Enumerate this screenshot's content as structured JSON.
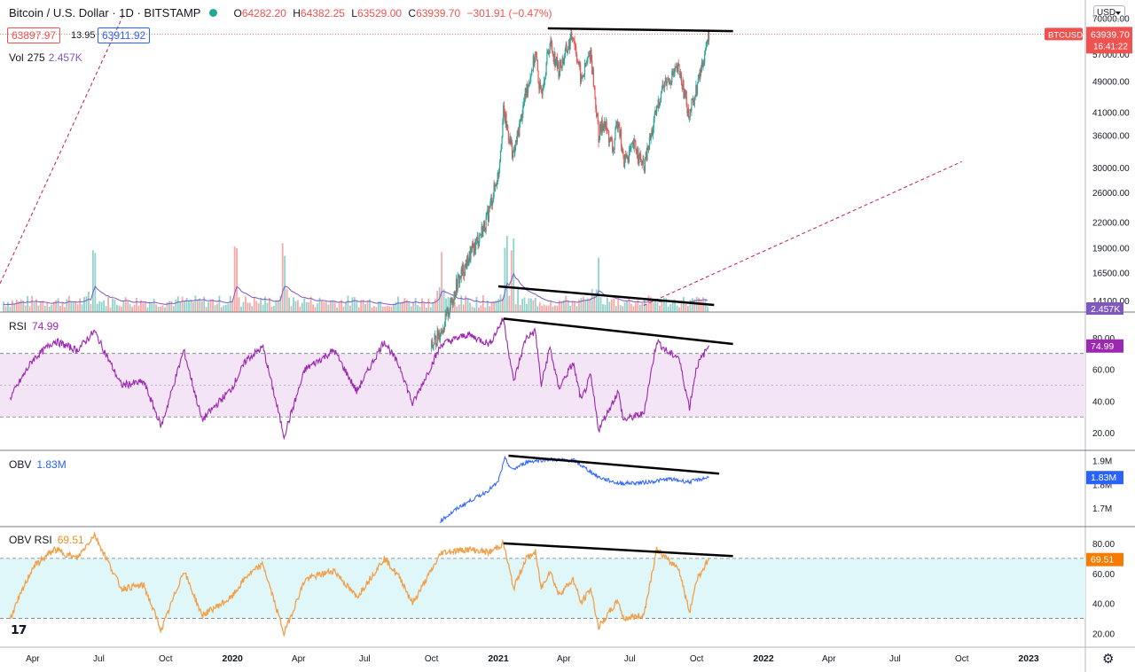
{
  "header": {
    "title": "Bitcoin / U.S. Dollar · 1D · BITSTAMP",
    "open_label": "O",
    "open": "64282.20",
    "high_label": "H",
    "high": "64382.25",
    "low_label": "L",
    "low": "63529.00",
    "close_label": "C",
    "close": "63939.70",
    "change": "−301.91 (−0.47%)",
    "bid": "63897.97",
    "spread": "13.95",
    "ask": "63911.92",
    "currency": "USD"
  },
  "colors": {
    "up": "#26a69a",
    "down": "#ef5350",
    "rsi": "#9c27b0",
    "rsi_band": "#f3e5f5",
    "obv": "#2962ff",
    "obv_rsi": "#f0a04b",
    "obv_rsi_band": "#e0f7fa",
    "volume_ma": "#7e57c2"
  },
  "chart_data": [
    {
      "type": "candlestick",
      "symbol": "BTCUSD",
      "scale": "log",
      "y_ticks": [
        14100,
        16500,
        19000,
        22000,
        26000,
        30000,
        36000,
        41000,
        49000,
        57000,
        70000
      ],
      "y_tick_labels": [
        "14100.00",
        "16500.00",
        "19000.00",
        "22000.00",
        "26000.00",
        "30000.00",
        "36000.00",
        "41000.00",
        "49000.00",
        "57000.00",
        "70000.00"
      ],
      "last_price": "63939.70",
      "last_price_label": "BTCUSD",
      "countdown": "16:41:22",
      "x_ticks": [
        "Apr",
        "Jul",
        "Oct",
        "2020",
        "Apr",
        "Jul",
        "Oct",
        "2021",
        "Apr",
        "Jul",
        "Oct",
        "2022",
        "Apr",
        "Jul",
        "Oct",
        "2023"
      ],
      "x_tick_dates": [
        "2019-04",
        "2019-07",
        "2019-10",
        "2020-01",
        "2020-04",
        "2020-07",
        "2020-10",
        "2021-01",
        "2021-04",
        "2021-07",
        "2021-10",
        "2022-01",
        "2022-04",
        "2022-07",
        "2022-10",
        "2023-01"
      ],
      "price_path": [
        [
          "2020-10-01",
          10800
        ],
        [
          "2020-10-20",
          12500
        ],
        [
          "2020-11-05",
          15500
        ],
        [
          "2020-11-25",
          18500
        ],
        [
          "2020-12-15",
          22000
        ],
        [
          "2021-01-01",
          29000
        ],
        [
          "2021-01-08",
          41000
        ],
        [
          "2021-01-22",
          32000
        ],
        [
          "2021-02-08",
          46000
        ],
        [
          "2021-02-21",
          57000
        ],
        [
          "2021-02-28",
          45000
        ],
        [
          "2021-03-13",
          61000
        ],
        [
          "2021-03-25",
          52000
        ],
        [
          "2021-04-14",
          64000
        ],
        [
          "2021-04-25",
          49000
        ],
        [
          "2021-05-08",
          58000
        ],
        [
          "2021-05-19",
          36000
        ],
        [
          "2021-05-26",
          39000
        ],
        [
          "2021-06-08",
          33000
        ],
        [
          "2021-06-15",
          40000
        ],
        [
          "2021-06-22",
          31000
        ],
        [
          "2021-07-08",
          34000
        ],
        [
          "2021-07-20",
          29800
        ],
        [
          "2021-08-14",
          47000
        ],
        [
          "2021-08-24",
          49500
        ],
        [
          "2021-09-06",
          52500
        ],
        [
          "2021-09-21",
          40500
        ],
        [
          "2021-10-01",
          47000
        ],
        [
          "2021-10-18",
          64000
        ]
      ],
      "trendlines": [
        {
          "from": [
            "2021-03-10",
            66000
          ],
          "to": [
            "2021-11-20",
            65000
          ],
          "color": "#000000"
        }
      ],
      "dashed_trendlines": [
        {
          "from": [
            "2018-12-20",
            9300
          ],
          "to": [
            "2019-08-05",
            72000
          ]
        },
        {
          "from": [
            "2021-07-20",
            13700
          ],
          "to": [
            "2022-10-01",
            31000
          ]
        }
      ],
      "volume": {
        "label": "Vol",
        "last": "275",
        "ma": "2.457K",
        "ma_label": "2.457K",
        "spike_dates": [
          "2019-06-25",
          "2020-03-12",
          "2020-01-05",
          "2020-10-15",
          "2021-01-11",
          "2021-01-21",
          "2021-05-19"
        ],
        "trendline": {
          "from": [
            "2021-01-01",
            29
          ],
          "to": [
            "2021-10-25",
            8
          ]
        }
      }
    },
    {
      "type": "line",
      "name": "RSI",
      "value_label": "74.99",
      "y_ticks": [
        20,
        40,
        60,
        80
      ],
      "y_tick_labels": [
        "20.00",
        "40.00",
        "60.00",
        "80.00"
      ],
      "band": [
        30,
        70
      ],
      "mid": 50,
      "last": 74.99,
      "path": [
        [
          "2019-03-01",
          42
        ],
        [
          "2019-04-01",
          66
        ],
        [
          "2019-05-01",
          78
        ],
        [
          "2019-06-01",
          72
        ],
        [
          "2019-06-25",
          84
        ],
        [
          "2019-08-01",
          50
        ],
        [
          "2019-09-01",
          52
        ],
        [
          "2019-09-25",
          24
        ],
        [
          "2019-10-26",
          72
        ],
        [
          "2019-11-20",
          28
        ],
        [
          "2019-12-31",
          48
        ],
        [
          "2020-01-20",
          66
        ],
        [
          "2020-02-12",
          74
        ],
        [
          "2020-03-12",
          18
        ],
        [
          "2020-04-10",
          60
        ],
        [
          "2020-05-20",
          72
        ],
        [
          "2020-06-20",
          46
        ],
        [
          "2020-07-28",
          78
        ],
        [
          "2020-08-20",
          60
        ],
        [
          "2020-09-05",
          38
        ],
        [
          "2020-10-15",
          76
        ],
        [
          "2020-11-20",
          82
        ],
        [
          "2020-12-20",
          76
        ],
        [
          "2021-01-08",
          92
        ],
        [
          "2021-01-22",
          52
        ],
        [
          "2021-02-08",
          80
        ],
        [
          "2021-02-21",
          84
        ],
        [
          "2021-03-01",
          50
        ],
        [
          "2021-03-13",
          74
        ],
        [
          "2021-03-25",
          48
        ],
        [
          "2021-04-14",
          64
        ],
        [
          "2021-04-25",
          40
        ],
        [
          "2021-05-08",
          56
        ],
        [
          "2021-05-19",
          22
        ],
        [
          "2021-06-15",
          46
        ],
        [
          "2021-06-22",
          28
        ],
        [
          "2021-07-20",
          32
        ],
        [
          "2021-08-07",
          78
        ],
        [
          "2021-08-24",
          70
        ],
        [
          "2021-09-06",
          68
        ],
        [
          "2021-09-21",
          36
        ],
        [
          "2021-10-01",
          62
        ],
        [
          "2021-10-18",
          74.99
        ]
      ],
      "trendline": {
        "from": [
          "2021-01-08",
          92
        ],
        "to": [
          "2021-11-20",
          76
        ]
      }
    },
    {
      "type": "line",
      "name": "OBV",
      "value_label": "1.83M",
      "y_ticks": [
        1.7,
        1.8,
        1.9
      ],
      "y_tick_labels": [
        "1.7M",
        "1.8M",
        "1.9M"
      ],
      "last_label": "1.83M",
      "path": [
        [
          "2020-10-12",
          1.644
        ],
        [
          "2020-11-10",
          1.708
        ],
        [
          "2020-12-15",
          1.768
        ],
        [
          "2020-12-31",
          1.806
        ],
        [
          "2021-01-10",
          1.907
        ],
        [
          "2021-01-20",
          1.86
        ],
        [
          "2021-02-10",
          1.895
        ],
        [
          "2021-03-10",
          1.905
        ],
        [
          "2021-04-15",
          1.9
        ],
        [
          "2021-05-19",
          1.83
        ],
        [
          "2021-06-15",
          1.804
        ],
        [
          "2021-07-20",
          1.807
        ],
        [
          "2021-08-24",
          1.822
        ],
        [
          "2021-09-21",
          1.81
        ],
        [
          "2021-10-18",
          1.83
        ]
      ],
      "trendline": {
        "from": [
          "2021-01-15",
          1.92
        ],
        "to": [
          "2021-11-01",
          1.845
        ]
      }
    },
    {
      "type": "line",
      "name": "OBV RSI",
      "value_label": "69.51",
      "y_ticks": [
        20,
        40,
        60,
        80
      ],
      "y_tick_labels": [
        "20.00",
        "40.00",
        "60.00",
        "80.00"
      ],
      "band": [
        30,
        70
      ],
      "last": 69.51,
      "path": [
        [
          "2019-03-01",
          30
        ],
        [
          "2019-04-01",
          64
        ],
        [
          "2019-05-01",
          76
        ],
        [
          "2019-06-01",
          70
        ],
        [
          "2019-06-25",
          86
        ],
        [
          "2019-08-01",
          50
        ],
        [
          "2019-09-01",
          52
        ],
        [
          "2019-09-25",
          22
        ],
        [
          "2019-10-26",
          62
        ],
        [
          "2019-11-20",
          32
        ],
        [
          "2019-12-31",
          44
        ],
        [
          "2020-01-20",
          58
        ],
        [
          "2020-02-12",
          66
        ],
        [
          "2020-03-12",
          20
        ],
        [
          "2020-04-10",
          56
        ],
        [
          "2020-05-20",
          62
        ],
        [
          "2020-06-20",
          44
        ],
        [
          "2020-07-28",
          70
        ],
        [
          "2020-08-20",
          56
        ],
        [
          "2020-09-05",
          40
        ],
        [
          "2020-10-15",
          74
        ],
        [
          "2020-11-20",
          76
        ],
        [
          "2020-12-20",
          74
        ],
        [
          "2021-01-08",
          80
        ],
        [
          "2021-01-22",
          50
        ],
        [
          "2021-02-08",
          70
        ],
        [
          "2021-02-21",
          74
        ],
        [
          "2021-03-01",
          50
        ],
        [
          "2021-03-13",
          62
        ],
        [
          "2021-03-25",
          46
        ],
        [
          "2021-04-14",
          56
        ],
        [
          "2021-04-25",
          40
        ],
        [
          "2021-05-08",
          50
        ],
        [
          "2021-05-19",
          24
        ],
        [
          "2021-06-15",
          42
        ],
        [
          "2021-06-22",
          30
        ],
        [
          "2021-07-20",
          32
        ],
        [
          "2021-08-07",
          76
        ],
        [
          "2021-08-24",
          68
        ],
        [
          "2021-09-06",
          64
        ],
        [
          "2021-09-21",
          34
        ],
        [
          "2021-10-01",
          56
        ],
        [
          "2021-10-18",
          69.51
        ]
      ],
      "trendline": {
        "from": [
          "2021-01-08",
          80
        ],
        "to": [
          "2021-11-20",
          71.5
        ]
      }
    }
  ]
}
